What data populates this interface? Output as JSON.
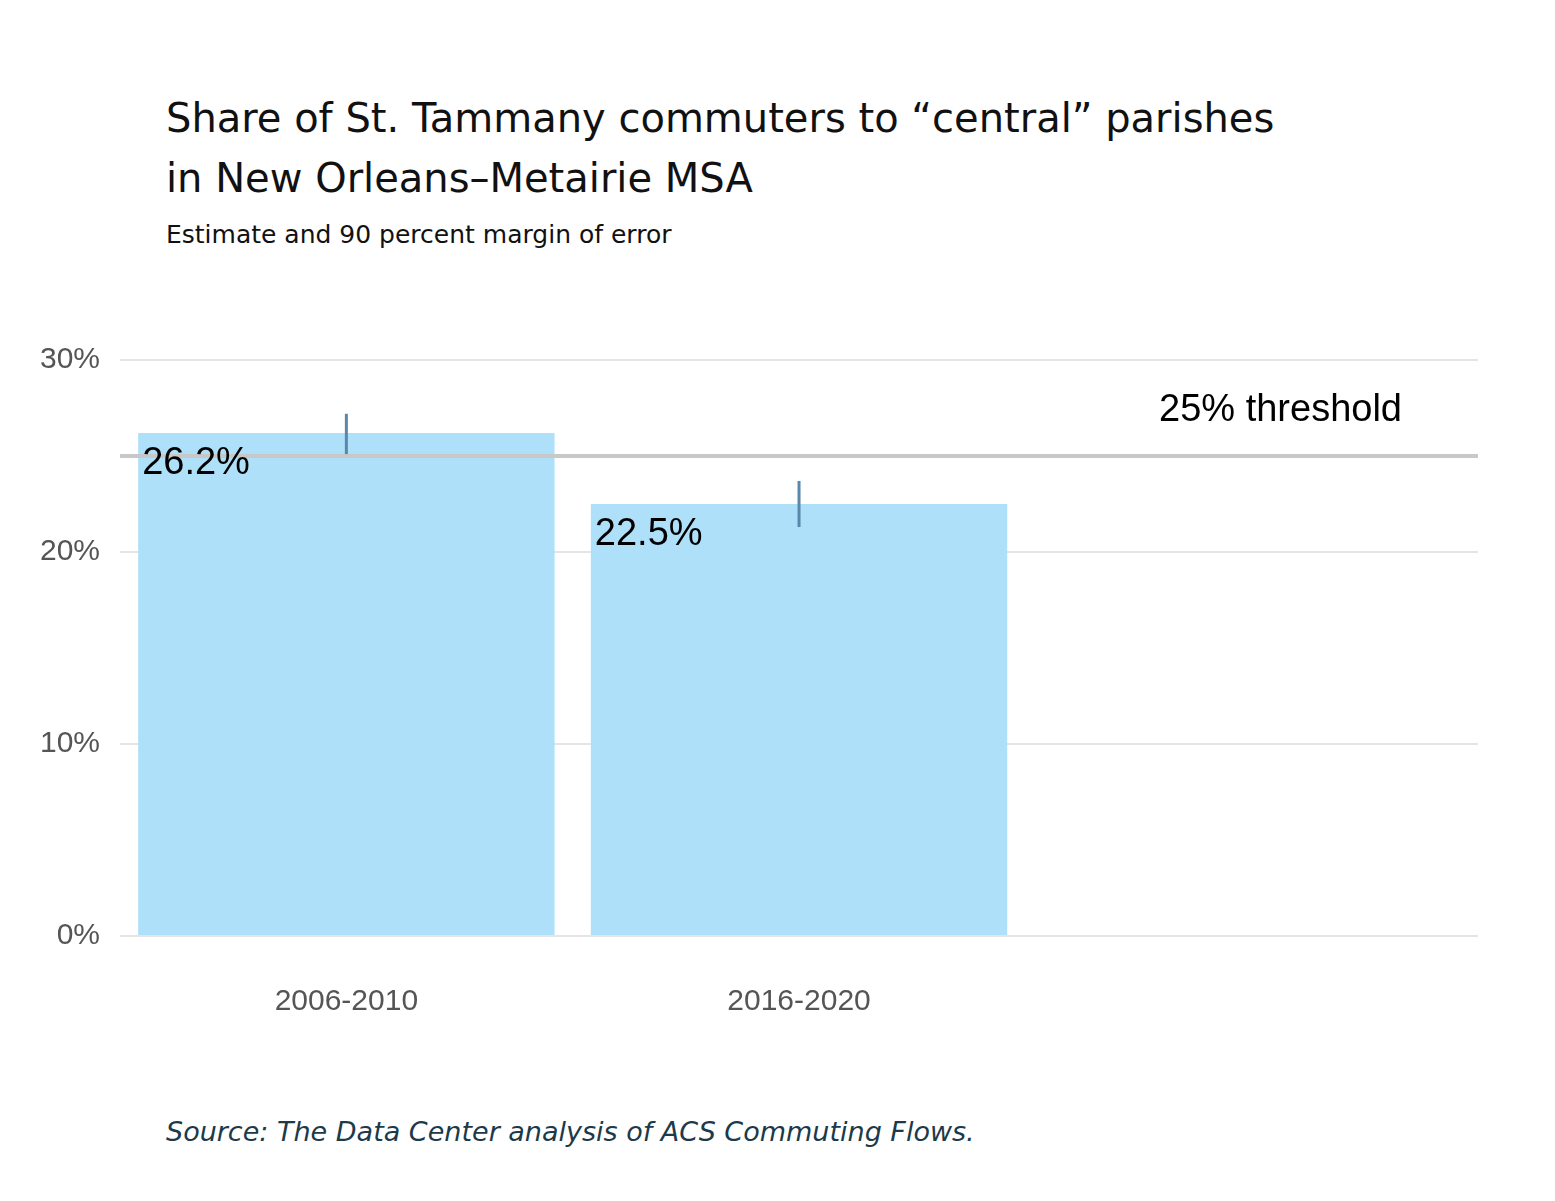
{
  "chart_data": {
    "type": "bar",
    "title": [
      "Share of St. Tammany commuters to “central” parishes",
      "in New Orleans–Metairie MSA"
    ],
    "subtitle": "Estimate and 90 percent margin of error",
    "source": "Source: The Data Center analysis of ACS Commuting Flows.",
    "categories": [
      "2006-2010",
      "2016-2020",
      null
    ],
    "values": [
      26.2,
      22.5,
      null
    ],
    "value_labels": [
      "26.2%",
      "22.5%",
      null
    ],
    "error_low": [
      25.1,
      21.3,
      null
    ],
    "error_high": [
      27.2,
      23.7,
      null
    ],
    "threshold": {
      "value": 25,
      "label": "25% threshold"
    },
    "color": "#aee0fa",
    "ylim": [
      0,
      30
    ],
    "yticks": [
      {
        "value": 0,
        "label": "0%"
      },
      {
        "value": 10,
        "label": "10%"
      },
      {
        "value": 20,
        "label": "20%"
      },
      {
        "value": 30,
        "label": "30%"
      }
    ],
    "grid": true,
    "data_labels": true
  }
}
